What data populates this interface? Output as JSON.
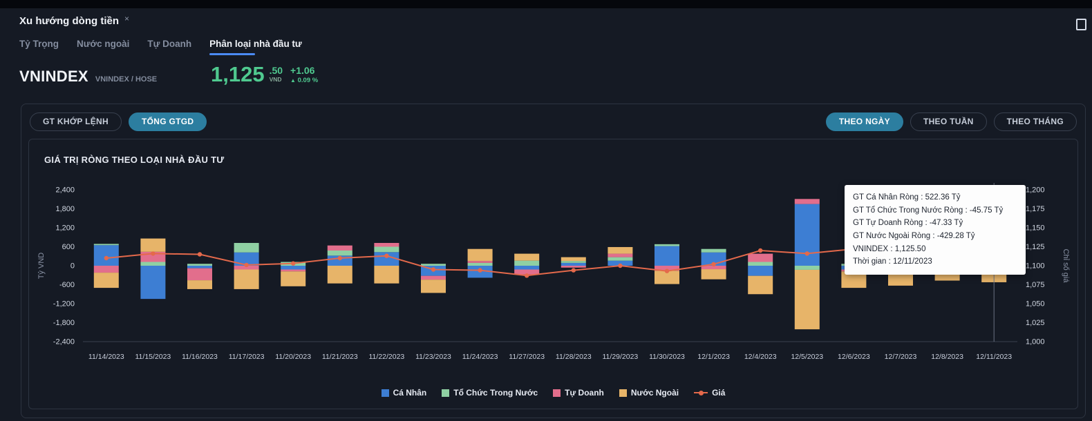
{
  "tab": {
    "title": "Xu hướng dòng tiền",
    "close_label": "×"
  },
  "subnav": {
    "items": [
      {
        "label": "Tỷ Trọng"
      },
      {
        "label": "Nước ngoài"
      },
      {
        "label": "Tự Doanh"
      },
      {
        "label": "Phân loại nhà đầu tư"
      }
    ]
  },
  "index": {
    "symbol": "VNINDEX",
    "exchange_label": "VNINDEX / HOSE",
    "price_int": "1,125",
    "price_dec": ".50",
    "currency": "VND",
    "change": "+1.06",
    "change_icon": "▲",
    "change_pct": "0.09 %"
  },
  "toolbar": {
    "value_modes": [
      {
        "label": "GT KHỚP LỆNH",
        "active": false
      },
      {
        "label": "TỔNG GTGD",
        "active": true
      }
    ],
    "period_modes": [
      {
        "label": "THEO NGÀY",
        "active": true
      },
      {
        "label": "THEO TUẦN",
        "active": false
      },
      {
        "label": "THEO THÁNG",
        "active": false
      }
    ]
  },
  "tooltip": {
    "lines": [
      "GT Cá Nhân Ròng : 522.36 Tỷ",
      "GT Tổ Chức Trong Nước Ròng : -45.75 Tỷ",
      "GT Tự Doanh Ròng : -47.33 Tỷ",
      "GT Nước Ngoài Ròng : -429.28 Tỷ",
      "VNINDEX : 1,125.50",
      "Thời gian : 12/11/2023"
    ]
  },
  "chart_data": {
    "type": "bar",
    "stacked": true,
    "title": "GIÁ TRỊ RÒNG THEO LOẠI NHÀ ĐẦU TƯ",
    "ylabel_left": "Tỷ VND",
    "ylabel_right": "Chỉ số giá",
    "y_left": {
      "min": -2400,
      "max": 2400,
      "step": 600
    },
    "y_right": {
      "min": 1000,
      "max": 1200,
      "step": 25
    },
    "legend_position": "bottom",
    "grid": false,
    "categories": [
      "11/14/2023",
      "11/15/2023",
      "11/16/2023",
      "11/17/2023",
      "11/20/2023",
      "11/21/2023",
      "11/22/2023",
      "11/23/2023",
      "11/24/2023",
      "11/27/2023",
      "11/28/2023",
      "11/29/2023",
      "11/30/2023",
      "12/1/2023",
      "12/4/2023",
      "12/5/2023",
      "12/6/2023",
      "12/7/2023",
      "12/8/2023",
      "12/11/2023"
    ],
    "series": [
      {
        "name": "Cá Nhân",
        "color": "#3d7ed3",
        "values": [
          650,
          -1050,
          -80,
          420,
          -120,
          320,
          430,
          -320,
          -380,
          -120,
          90,
          160,
          620,
          420,
          -320,
          1950,
          -120,
          -100,
          -60,
          522.36
        ]
      },
      {
        "name": "Tổ Chức Trong Nước",
        "color": "#8fd0a3",
        "values": [
          40,
          120,
          60,
          300,
          120,
          160,
          170,
          60,
          90,
          160,
          60,
          110,
          60,
          110,
          120,
          -130,
          60,
          50,
          40,
          -45.75
        ]
      },
      {
        "name": "Tự Doanh",
        "color": "#e26e8c",
        "values": [
          -220,
          320,
          -380,
          -120,
          -60,
          160,
          120,
          -120,
          60,
          -160,
          -60,
          110,
          -160,
          -110,
          260,
          160,
          -60,
          -60,
          -50,
          -47.33
        ]
      },
      {
        "name": "Nước Ngoài",
        "color": "#e7b469",
        "values": [
          -480,
          420,
          -280,
          -620,
          -470,
          -560,
          -560,
          -420,
          380,
          220,
          120,
          210,
          -420,
          -320,
          -580,
          -1880,
          -520,
          -470,
          -360,
          -429.28
        ]
      }
    ],
    "price": {
      "name": "Giá",
      "color": "#e4694b",
      "values": [
        1110,
        1116,
        1115,
        1101,
        1103,
        1110,
        1113,
        1095,
        1094,
        1087,
        1094,
        1100,
        1093,
        1102,
        1120,
        1116,
        1122,
        1121,
        1120,
        1125.5
      ]
    },
    "crosshair_index": 19
  }
}
